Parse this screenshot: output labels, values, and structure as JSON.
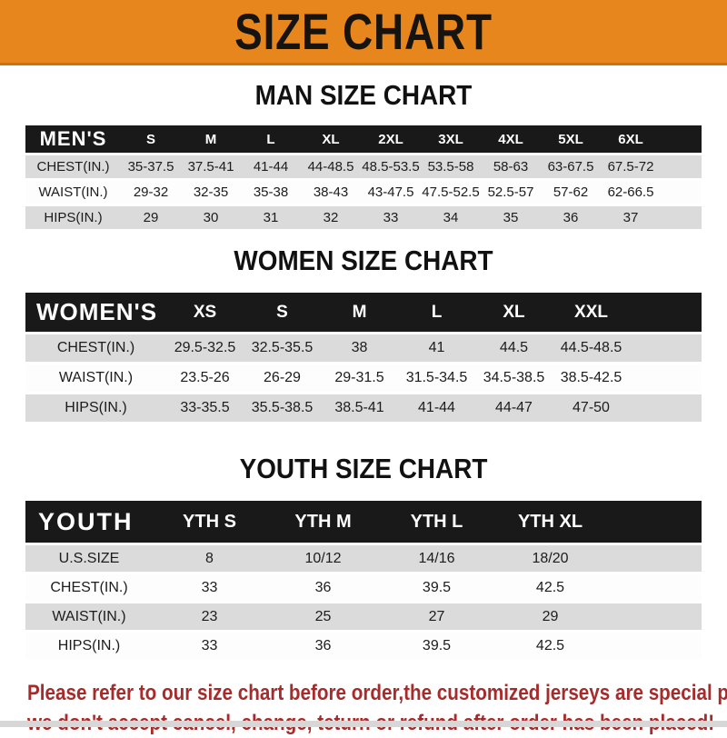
{
  "banner": {
    "title": "SIZE CHART",
    "bg_color": "#E8861E",
    "edge_color": "#C9720F",
    "text_color": "#161410"
  },
  "colors": {
    "header_bar": "#191919",
    "row_gray": "#DBDBDB",
    "row_white": "#FDFDFD",
    "footer_red": "#A62B2B"
  },
  "sections": [
    {
      "heading": "MAN SIZE CHART",
      "header_label": "MEN'S",
      "columns": [
        "S",
        "M",
        "L",
        "XL",
        "2XL",
        "3XL",
        "4XL",
        "5XL",
        "6XL"
      ],
      "rows": [
        {
          "label": "CHEST(IN.)",
          "values": [
            "35-37.5",
            "37.5-41",
            "41-44",
            "44-48.5",
            "48.5-53.5",
            "53.5-58",
            "58-63",
            "63-67.5",
            "67.5-72"
          ]
        },
        {
          "label": "WAIST(IN.)",
          "values": [
            "29-32",
            "32-35",
            "35-38",
            "38-43",
            "43-47.5",
            "47.5-52.5",
            "52.5-57",
            "57-62",
            "62-66.5"
          ]
        },
        {
          "label": "HIPS(IN.)",
          "values": [
            "29",
            "30",
            "31",
            "32",
            "33",
            "34",
            "35",
            "36",
            "37"
          ]
        }
      ]
    },
    {
      "heading": "WOMEN SIZE CHART",
      "header_label": "WOMEN'S",
      "columns": [
        "XS",
        "S",
        "M",
        "L",
        "XL",
        "XXL"
      ],
      "rows": [
        {
          "label": "CHEST(IN.)",
          "values": [
            "29.5-32.5",
            "32.5-35.5",
            "38",
            "41",
            "44.5",
            "44.5-48.5"
          ]
        },
        {
          "label": "WAIST(IN.)",
          "values": [
            "23.5-26",
            "26-29",
            "29-31.5",
            "31.5-34.5",
            "34.5-38.5",
            "38.5-42.5"
          ]
        },
        {
          "label": "HIPS(IN.)",
          "values": [
            "33-35.5",
            "35.5-38.5",
            "38.5-41",
            "41-44",
            "44-47",
            "47-50"
          ]
        }
      ]
    },
    {
      "heading": "YOUTH SIZE CHART",
      "header_label": "YOUTH",
      "columns": [
        "YTH S",
        "YTH M",
        "YTH L",
        "YTH XL"
      ],
      "rows": [
        {
          "label": "U.S.SIZE",
          "values": [
            "8",
            "10/12",
            "14/16",
            "18/20"
          ]
        },
        {
          "label": "CHEST(IN.)",
          "values": [
            "33",
            "36",
            "39.5",
            "42.5"
          ]
        },
        {
          "label": "WAIST(IN.)",
          "values": [
            "23",
            "25",
            "27",
            "29"
          ]
        },
        {
          "label": "HIPS(IN.)",
          "values": [
            "33",
            "36",
            "39.5",
            "42.5"
          ]
        }
      ]
    }
  ],
  "footer": {
    "line1": "Please refer to our size chart before order,the customized jerseys are special products,",
    "line2": "we don't accept cancel, change, teturn or refund after order has been placed!"
  }
}
